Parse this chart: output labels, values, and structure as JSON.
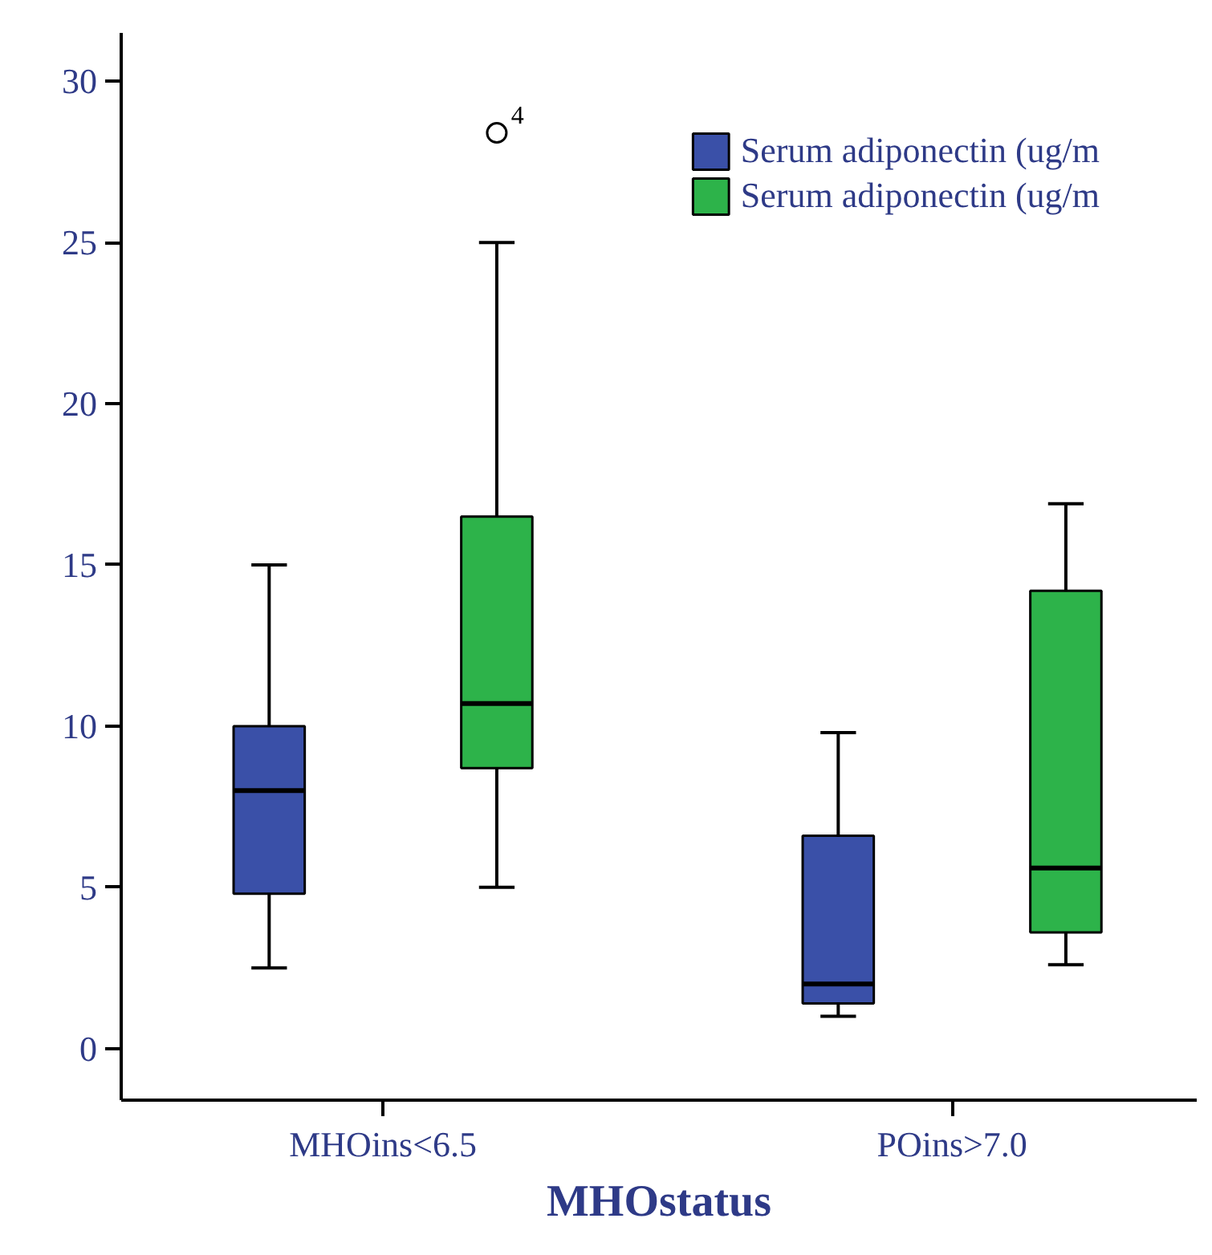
{
  "chart_data": {
    "type": "box",
    "xlabel": "MHOstatus",
    "categories": [
      "MHOins<6.5",
      "POins>7.0"
    ],
    "ylim": [
      -1.6,
      31.5
    ],
    "yticks": [
      0,
      5,
      10,
      15,
      20,
      25,
      30
    ],
    "grid": false,
    "legend": "top right",
    "series": [
      {
        "name": "Serum adiponectin (ug/m",
        "color": "#3a50a8",
        "boxes": [
          {
            "low": 2.5,
            "q1": 4.8,
            "median": 8.0,
            "q3": 10.0,
            "high": 15.0
          },
          {
            "low": 1.0,
            "q1": 1.4,
            "median": 2.0,
            "q3": 6.6,
            "high": 9.8
          }
        ]
      },
      {
        "name": "Serum adiponectin (ug/m",
        "color": "#2db34a",
        "boxes": [
          {
            "low": 5.0,
            "q1": 8.7,
            "median": 10.7,
            "q3": 16.5,
            "high": 25.0,
            "outliers": [
              28.4
            ]
          },
          {
            "low": 2.6,
            "q1": 3.6,
            "median": 5.6,
            "q3": 14.2,
            "high": 16.9
          }
        ]
      }
    ],
    "annotations": [
      "4"
    ]
  }
}
